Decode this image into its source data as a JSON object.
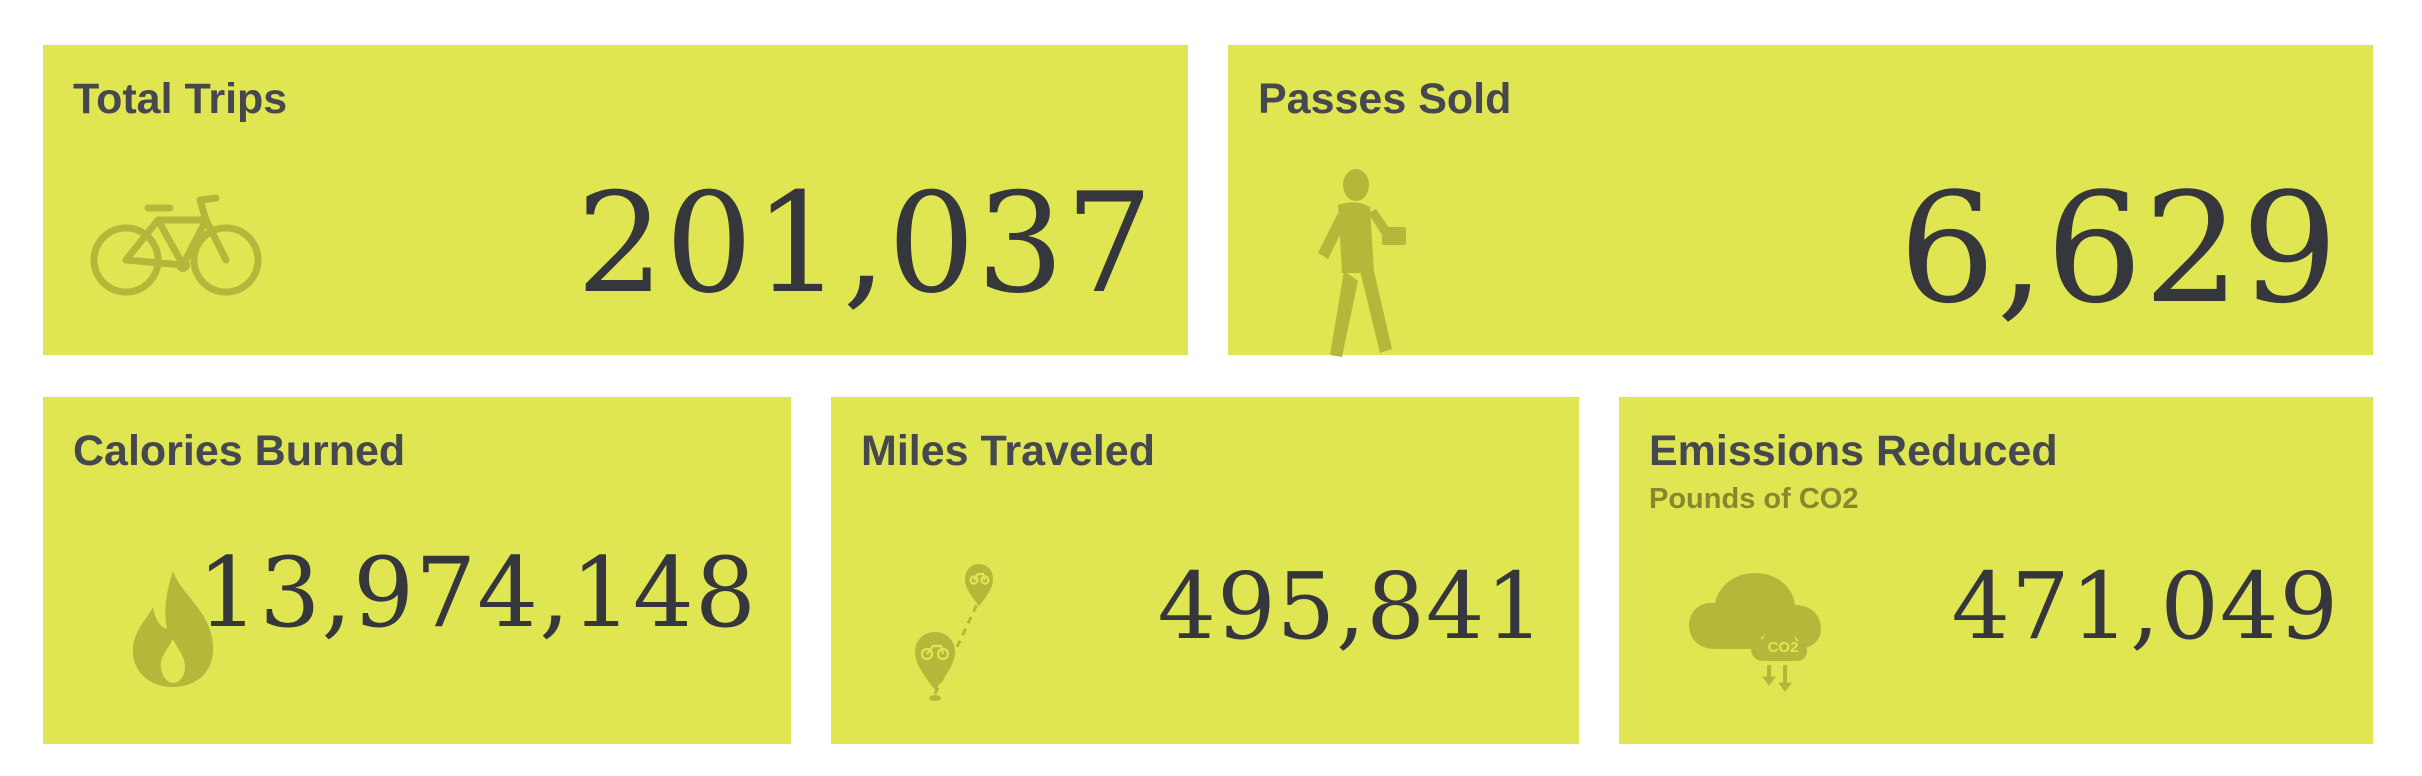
{
  "colors": {
    "card_bg": "#e0e652",
    "icon": "#b4b83a",
    "title": "#45484f",
    "value": "#35373c",
    "subtitle": "#85882d"
  },
  "cards": {
    "total_trips": {
      "title": "Total Trips",
      "value": "201,037",
      "icon": "bicycle-icon"
    },
    "passes_sold": {
      "title": "Passes Sold",
      "value": "6,629",
      "icon": "walking-person-icon"
    },
    "calories_burned": {
      "title": "Calories Burned",
      "value": "13,974,148",
      "icon": "flame-icon"
    },
    "miles_traveled": {
      "title": "Miles Traveled",
      "value": "495,841",
      "icon": "route-pins-icon"
    },
    "emissions_reduced": {
      "title": "Emissions Reduced",
      "subtitle": "Pounds of CO2",
      "value": "471,049",
      "icon": "cloud-co2-icon",
      "icon_label": "CO2"
    }
  }
}
